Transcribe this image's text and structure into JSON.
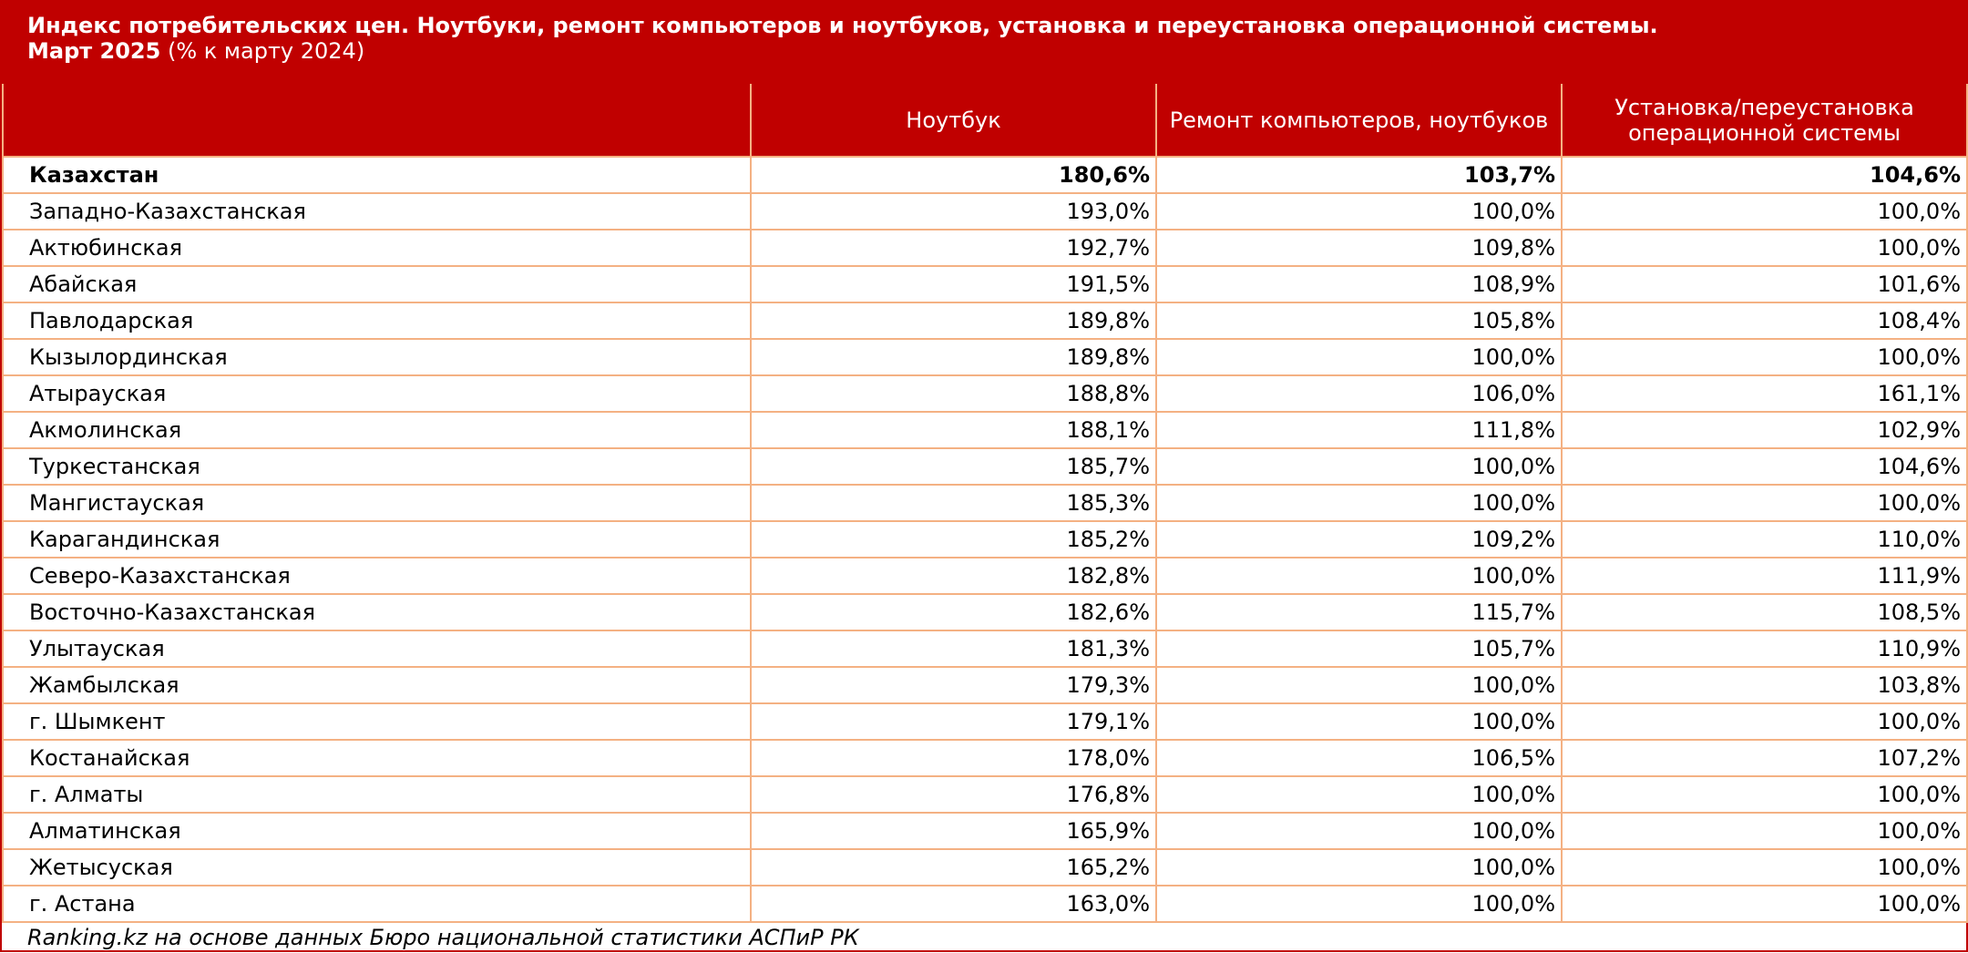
{
  "header": {
    "title": "Индекс потребительских цен. Ноутбуки, ремонт компьютеров и ноутбуков, установка и переустановка операционной системы.",
    "period": "Март 2025",
    "unit": "(% к марту 2024)"
  },
  "table": {
    "columns": [
      "Ноутбук",
      "Ремонт компьютеров, ноутбуков",
      "Установка/переустановка операционной системы"
    ],
    "rows": [
      {
        "region": "Казахстан",
        "values": [
          "180,6%",
          "103,7%",
          "104,6%"
        ]
      },
      {
        "region": "Западно-Казахстанская",
        "values": [
          "193,0%",
          "100,0%",
          "100,0%"
        ]
      },
      {
        "region": "Актюбинская",
        "values": [
          "192,7%",
          "109,8%",
          "100,0%"
        ]
      },
      {
        "region": "Абайская",
        "values": [
          "191,5%",
          "108,9%",
          "101,6%"
        ]
      },
      {
        "region": "Павлодарская",
        "values": [
          "189,8%",
          "105,8%",
          "108,4%"
        ]
      },
      {
        "region": "Кызылординская",
        "values": [
          "189,8%",
          "100,0%",
          "100,0%"
        ]
      },
      {
        "region": "Атырауская",
        "values": [
          "188,8%",
          "106,0%",
          "161,1%"
        ]
      },
      {
        "region": "Акмолинская",
        "values": [
          "188,1%",
          "111,8%",
          "102,9%"
        ]
      },
      {
        "region": "Туркестанская",
        "values": [
          "185,7%",
          "100,0%",
          "104,6%"
        ]
      },
      {
        "region": "Мангистауская",
        "values": [
          "185,3%",
          "100,0%",
          "100,0%"
        ]
      },
      {
        "region": "Карагандинская",
        "values": [
          "185,2%",
          "109,2%",
          "110,0%"
        ]
      },
      {
        "region": "Северо-Казахстанская",
        "values": [
          "182,8%",
          "100,0%",
          "111,9%"
        ]
      },
      {
        "region": "Восточно-Казахстанская",
        "values": [
          "182,6%",
          "115,7%",
          "108,5%"
        ]
      },
      {
        "region": "Улытауская",
        "values": [
          "181,3%",
          "105,7%",
          "110,9%"
        ]
      },
      {
        "region": "Жамбылская",
        "values": [
          "179,3%",
          "100,0%",
          "103,8%"
        ]
      },
      {
        "region": "г. Шымкент",
        "values": [
          "179,1%",
          "100,0%",
          "100,0%"
        ]
      },
      {
        "region": "Костанайская",
        "values": [
          "178,0%",
          "106,5%",
          "107,2%"
        ]
      },
      {
        "region": "г. Алматы",
        "values": [
          "176,8%",
          "100,0%",
          "100,0%"
        ]
      },
      {
        "region": "Алматинская",
        "values": [
          "165,9%",
          "100,0%",
          "100,0%"
        ]
      },
      {
        "region": "Жетысуская",
        "values": [
          "165,2%",
          "100,0%",
          "100,0%"
        ]
      },
      {
        "region": "г. Астана",
        "values": [
          "163,0%",
          "100,0%",
          "100,0%"
        ]
      }
    ]
  },
  "footer": {
    "source": "Ranking.kz на основе данных Бюро национальной статистики АСПиР РК"
  }
}
